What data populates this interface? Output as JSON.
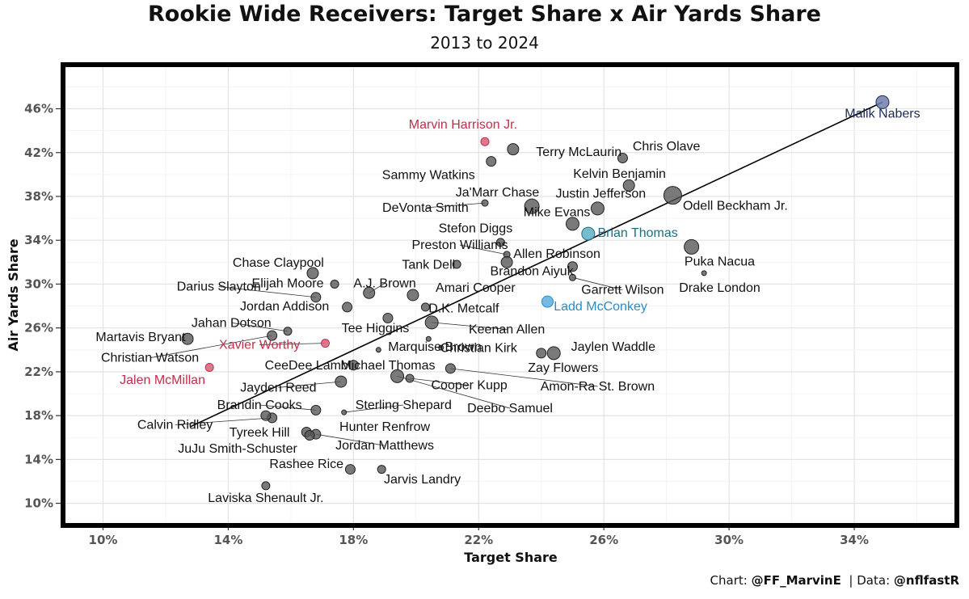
{
  "caption": {
    "chart_label": "Chart:",
    "chart_handle": "@FF_MarvinE",
    "data_label": "Data:",
    "data_handle": "@nflfastR"
  },
  "colors": {
    "gray_point": "#555555",
    "highlight_red": "#c0304a",
    "highlight_teal": "#1f6f80",
    "highlight_blue": "#2b8cc4",
    "highlight_navy": "#1c2a55",
    "trend_line": "#000000"
  },
  "chart_data": {
    "type": "scatter",
    "title": "Rookie Wide Receivers: Target Share x Air Yards Share",
    "subtitle": "2013 to 2024",
    "xlabel": "Target Share",
    "ylabel": "Air Yards Share",
    "xlim": [
      8.8,
      37.2
    ],
    "ylim": [
      8.2,
      49.8
    ],
    "xticks": [
      10,
      14,
      18,
      22,
      26,
      30,
      34
    ],
    "yticks": [
      10,
      14,
      18,
      22,
      26,
      30,
      34,
      38,
      42,
      46
    ],
    "xtick_labels": [
      "10%",
      "14%",
      "18%",
      "22%",
      "26%",
      "30%",
      "34%"
    ],
    "ytick_labels": [
      "10%",
      "14%",
      "18%",
      "22%",
      "26%",
      "30%",
      "34%",
      "38%",
      "42%",
      "46%"
    ],
    "grid": true,
    "trendline": {
      "x": [
        12.8,
        34.9
      ],
      "y": [
        17.0,
        46.6
      ]
    },
    "points": [
      {
        "name": "Malik Nabers",
        "x": 34.9,
        "y": 46.6,
        "size": 8,
        "color": "navy",
        "lx": 34.9,
        "ly": 45.2,
        "anchor": "middle",
        "line": false
      },
      {
        "name": "Marvin Harrison Jr.",
        "x": 22.2,
        "y": 43.0,
        "size": 5,
        "color": "red",
        "lx": 21.5,
        "ly": 44.2,
        "anchor": "middle",
        "line": false
      },
      {
        "name": "Terry McLaurin",
        "x": 23.1,
        "y": 42.3,
        "size": 7,
        "color": "gray",
        "lx": 25.2,
        "ly": 41.7,
        "anchor": "middle",
        "line": false
      },
      {
        "name": "Chris Olave",
        "x": 26.6,
        "y": 41.5,
        "size": 6,
        "color": "gray",
        "lx": 28.0,
        "ly": 42.2,
        "anchor": "middle",
        "line": false
      },
      {
        "name": "Sammy Watkins",
        "x": 22.4,
        "y": 41.2,
        "size": 6,
        "color": "gray",
        "lx": 20.4,
        "ly": 39.6,
        "anchor": "middle",
        "line": false
      },
      {
        "name": "Kelvin Benjamin",
        "x": 26.8,
        "y": 39.0,
        "size": 7,
        "color": "gray",
        "lx": 26.5,
        "ly": 39.7,
        "anchor": "middle",
        "line": false
      },
      {
        "name": "Ja'Marr Chase",
        "x": 23.7,
        "y": 37.1,
        "size": 9,
        "color": "gray",
        "lx": 22.6,
        "ly": 38.0,
        "anchor": "middle",
        "line": false
      },
      {
        "name": "Justin Jefferson",
        "x": 25.8,
        "y": 36.9,
        "size": 8,
        "color": "gray",
        "lx": 25.9,
        "ly": 37.9,
        "anchor": "middle",
        "line": false
      },
      {
        "name": "Odell Beckham Jr.",
        "x": 28.2,
        "y": 38.1,
        "size": 11,
        "color": "gray",
        "lx": 30.2,
        "ly": 36.8,
        "anchor": "middle",
        "line": false
      },
      {
        "name": "DeVonta Smith",
        "x": 22.2,
        "y": 37.4,
        "size": 4,
        "color": "gray",
        "lx": 20.3,
        "ly": 36.6,
        "anchor": "middle",
        "line": true
      },
      {
        "name": "Mike Evans",
        "x": 25.0,
        "y": 35.5,
        "size": 8,
        "color": "gray",
        "lx": 24.5,
        "ly": 36.2,
        "anchor": "middle",
        "line": false
      },
      {
        "name": "Brian Thomas",
        "x": 25.5,
        "y": 34.6,
        "size": 8,
        "color": "teal",
        "lx": 25.8,
        "ly": 34.3,
        "anchor": "start",
        "line": false
      },
      {
        "name": "Stefon Diggs",
        "x": 22.7,
        "y": 33.8,
        "size": 5,
        "color": "gray",
        "lx": 21.9,
        "ly": 34.7,
        "anchor": "middle",
        "line": false
      },
      {
        "name": "Preston Williams",
        "x": 22.9,
        "y": 32.7,
        "size": 4,
        "color": "gray",
        "lx": 21.4,
        "ly": 33.2,
        "anchor": "middle",
        "line": true
      },
      {
        "name": "Allen Robinson",
        "x": 22.9,
        "y": 32.0,
        "size": 7,
        "color": "gray",
        "lx": 24.5,
        "ly": 32.4,
        "anchor": "middle",
        "line": false
      },
      {
        "name": "Tank Dell",
        "x": 21.3,
        "y": 31.8,
        "size": 5,
        "color": "gray",
        "lx": 20.4,
        "ly": 31.4,
        "anchor": "middle",
        "line": false
      },
      {
        "name": "Brandon Aiyuk",
        "x": 25.0,
        "y": 31.6,
        "size": 6,
        "color": "gray",
        "lx": 23.7,
        "ly": 30.8,
        "anchor": "middle",
        "line": false
      },
      {
        "name": "Chase Claypool",
        "x": 16.7,
        "y": 31.0,
        "size": 7,
        "color": "gray",
        "lx": 15.6,
        "ly": 31.6,
        "anchor": "middle",
        "line": false
      },
      {
        "name": "Puka Nacua",
        "x": 28.8,
        "y": 33.4,
        "size": 9,
        "color": "gray",
        "lx": 29.7,
        "ly": 31.7,
        "anchor": "middle",
        "line": false
      },
      {
        "name": "Drake London",
        "x": 29.2,
        "y": 31.0,
        "size": 3,
        "color": "gray",
        "lx": 29.7,
        "ly": 29.3,
        "anchor": "middle",
        "line": false
      },
      {
        "name": "Garrett Wilson",
        "x": 25.0,
        "y": 30.6,
        "size": 4,
        "color": "gray",
        "lx": 26.6,
        "ly": 29.1,
        "anchor": "middle",
        "line": true
      },
      {
        "name": "Elijah Moore",
        "x": 17.4,
        "y": 30.0,
        "size": 5,
        "color": "gray",
        "lx": 15.9,
        "ly": 29.7,
        "anchor": "middle",
        "line": false
      },
      {
        "name": "A.J. Brown",
        "x": 18.5,
        "y": 29.2,
        "size": 7,
        "color": "gray",
        "lx": 19.0,
        "ly": 29.7,
        "anchor": "middle",
        "line": true
      },
      {
        "name": "Darius Slayton",
        "x": 16.8,
        "y": 28.8,
        "size": 6,
        "color": "gray",
        "lx": 13.7,
        "ly": 29.4,
        "anchor": "middle",
        "line": true
      },
      {
        "name": "Amari Cooper",
        "x": 19.9,
        "y": 29.0,
        "size": 7,
        "color": "gray",
        "lx": 21.9,
        "ly": 29.3,
        "anchor": "middle",
        "line": false
      },
      {
        "name": "Jordan Addison",
        "x": 17.8,
        "y": 27.9,
        "size": 6,
        "color": "gray",
        "lx": 15.8,
        "ly": 27.6,
        "anchor": "middle",
        "line": false
      },
      {
        "name": "Tee Higgins",
        "x": 19.1,
        "y": 26.9,
        "size": 6,
        "color": "gray",
        "lx": 18.7,
        "ly": 25.6,
        "anchor": "middle",
        "line": false
      },
      {
        "name": "Ladd McConkey",
        "x": 24.2,
        "y": 28.4,
        "size": 7,
        "color": "blue",
        "lx": 24.4,
        "ly": 27.6,
        "anchor": "start",
        "line": false
      },
      {
        "name": "D.K. Metcalf",
        "x": 20.3,
        "y": 27.9,
        "size": 5,
        "color": "gray",
        "lx": 20.4,
        "ly": 27.4,
        "anchor": "start",
        "line": false
      },
      {
        "name": "Jahan Dotson",
        "x": 15.9,
        "y": 25.7,
        "size": 5,
        "color": "gray",
        "lx": 14.1,
        "ly": 26.1,
        "anchor": "middle",
        "line": true
      },
      {
        "name": "Keenan Allen",
        "x": 20.5,
        "y": 26.5,
        "size": 8,
        "color": "gray",
        "lx": 22.9,
        "ly": 25.5,
        "anchor": "middle",
        "line": true
      },
      {
        "name": "Martavis Bryant",
        "x": 12.7,
        "y": 25.0,
        "size": 7,
        "color": "gray",
        "lx": 11.2,
        "ly": 24.8,
        "anchor": "middle",
        "line": false
      },
      {
        "name": "Xavier Worthy",
        "x": 17.1,
        "y": 24.6,
        "size": 5,
        "color": "red",
        "lx": 15.0,
        "ly": 24.1,
        "anchor": "middle",
        "line": true
      },
      {
        "name": "Christian Watson",
        "x": 15.4,
        "y": 25.3,
        "size": 6,
        "color": "gray",
        "lx": 11.5,
        "ly": 22.9,
        "anchor": "middle",
        "line": true
      },
      {
        "name": "Marquise Brown",
        "x": 20.4,
        "y": 25.0,
        "size": 3,
        "color": "gray",
        "lx": 20.6,
        "ly": 23.9,
        "anchor": "middle",
        "line": false
      },
      {
        "name": "Christian Kirk",
        "x": 20.8,
        "y": 24.2,
        "size": 3,
        "color": "gray",
        "lx": 22.0,
        "ly": 23.8,
        "anchor": "middle",
        "line": false
      },
      {
        "name": "Jaylen Waddle",
        "x": 24.4,
        "y": 23.7,
        "size": 8,
        "color": "gray",
        "lx": 26.3,
        "ly": 23.9,
        "anchor": "middle",
        "line": false
      },
      {
        "name": "Jalen McMillan",
        "x": 13.4,
        "y": 22.4,
        "size": 5,
        "color": "red",
        "lx": 11.9,
        "ly": 20.9,
        "anchor": "middle",
        "line": false
      },
      {
        "name": "CeeDee Lamb",
        "x": 18.0,
        "y": 22.6,
        "size": 6,
        "color": "gray",
        "lx": 16.5,
        "ly": 22.2,
        "anchor": "middle",
        "line": false
      },
      {
        "name": "Michael Thomas",
        "x": 18.8,
        "y": 24.0,
        "size": 3,
        "color": "gray",
        "lx": 19.1,
        "ly": 22.2,
        "anchor": "middle",
        "line": false
      },
      {
        "name": "Zay Flowers",
        "x": 24.0,
        "y": 23.7,
        "size": 6,
        "color": "gray",
        "lx": 24.7,
        "ly": 22.0,
        "anchor": "middle",
        "line": false
      },
      {
        "name": "Jayden Reed",
        "x": 17.6,
        "y": 21.1,
        "size": 7,
        "color": "gray",
        "lx": 15.6,
        "ly": 20.2,
        "anchor": "middle",
        "line": true
      },
      {
        "name": "Cooper Kupp",
        "x": 19.8,
        "y": 21.4,
        "size": 5,
        "color": "gray",
        "lx": 21.7,
        "ly": 20.4,
        "anchor": "middle",
        "line": true
      },
      {
        "name": "Amon-Ra St. Brown",
        "x": 21.1,
        "y": 22.3,
        "size": 6,
        "color": "gray",
        "lx": 25.8,
        "ly": 20.3,
        "anchor": "middle",
        "line": true
      },
      {
        "name": "Brandin Cooks",
        "x": 16.8,
        "y": 18.5,
        "size": 6,
        "color": "gray",
        "lx": 15.0,
        "ly": 18.6,
        "anchor": "middle",
        "line": true
      },
      {
        "name": "Sterling Shepard",
        "x": 17.7,
        "y": 18.3,
        "size": 3,
        "color": "gray",
        "lx": 19.6,
        "ly": 18.6,
        "anchor": "middle",
        "line": true
      },
      {
        "name": "Deebo Samuel",
        "x": 19.4,
        "y": 21.6,
        "size": 8,
        "color": "gray",
        "lx": 23.0,
        "ly": 18.3,
        "anchor": "middle",
        "line": true
      },
      {
        "name": "Calvin Ridley",
        "x": 15.4,
        "y": 17.8,
        "size": 6,
        "color": "gray",
        "lx": 12.3,
        "ly": 16.8,
        "anchor": "middle",
        "line": true
      },
      {
        "name": "Tyreek Hill",
        "x": 16.5,
        "y": 16.5,
        "size": 6,
        "color": "gray",
        "lx": 15.0,
        "ly": 16.1,
        "anchor": "middle",
        "line": false
      },
      {
        "name": "Hunter Renfrow",
        "x": 15.2,
        "y": 18.0,
        "size": 6,
        "color": "gray",
        "lx": 19.0,
        "ly": 16.6,
        "anchor": "middle",
        "line": false
      },
      {
        "name": "Jordan Matthews",
        "x": 16.8,
        "y": 16.3,
        "size": 6,
        "color": "gray",
        "lx": 19.0,
        "ly": 14.9,
        "anchor": "middle",
        "line": true
      },
      {
        "name": "JuJu Smith-Schuster",
        "x": 16.6,
        "y": 16.2,
        "size": 6,
        "color": "gray",
        "lx": 14.3,
        "ly": 14.6,
        "anchor": "middle",
        "line": false
      },
      {
        "name": "Rashee Rice",
        "x": 17.9,
        "y": 13.1,
        "size": 6,
        "color": "gray",
        "lx": 16.5,
        "ly": 13.2,
        "anchor": "middle",
        "line": false
      },
      {
        "name": "Jarvis Landry",
        "x": 18.9,
        "y": 13.1,
        "size": 5,
        "color": "gray",
        "lx": 20.2,
        "ly": 11.8,
        "anchor": "middle",
        "line": false
      },
      {
        "name": "Laviska Shenault Jr.",
        "x": 15.2,
        "y": 11.6,
        "size": 5,
        "color": "gray",
        "lx": 15.2,
        "ly": 10.1,
        "anchor": "middle",
        "line": false
      }
    ]
  }
}
